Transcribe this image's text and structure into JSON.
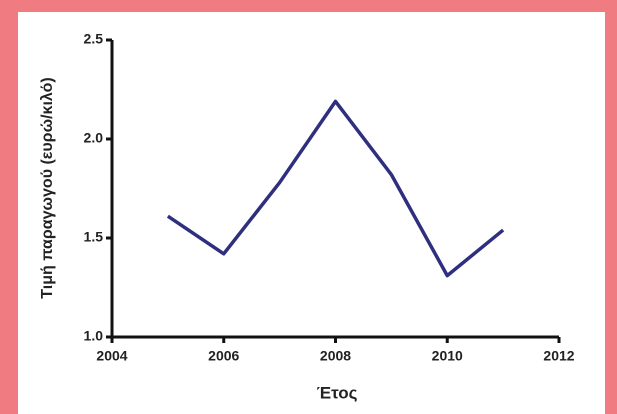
{
  "chart_data": {
    "type": "line",
    "x_label": "Έτος",
    "y_label": "Τιμή παραγωγού (ευρώ/κιλό)",
    "x": [
      2005,
      2006,
      2007,
      2008,
      2009,
      2010,
      2011
    ],
    "series": [
      {
        "color": "#2f2f7f",
        "values": [
          1.61,
          1.42,
          1.78,
          2.19,
          1.82,
          1.31,
          1.54
        ]
      }
    ],
    "xlim": [
      2004,
      2012
    ],
    "xticks": [
      2004,
      2006,
      2008,
      2010,
      2012
    ],
    "ylim": [
      1.0,
      2.5
    ],
    "yticks": [
      {
        "value": 1.0,
        "label": "1.0"
      },
      1.5,
      {
        "value": 2.0,
        "label": "2.0"
      },
      2.5
    ]
  }
}
